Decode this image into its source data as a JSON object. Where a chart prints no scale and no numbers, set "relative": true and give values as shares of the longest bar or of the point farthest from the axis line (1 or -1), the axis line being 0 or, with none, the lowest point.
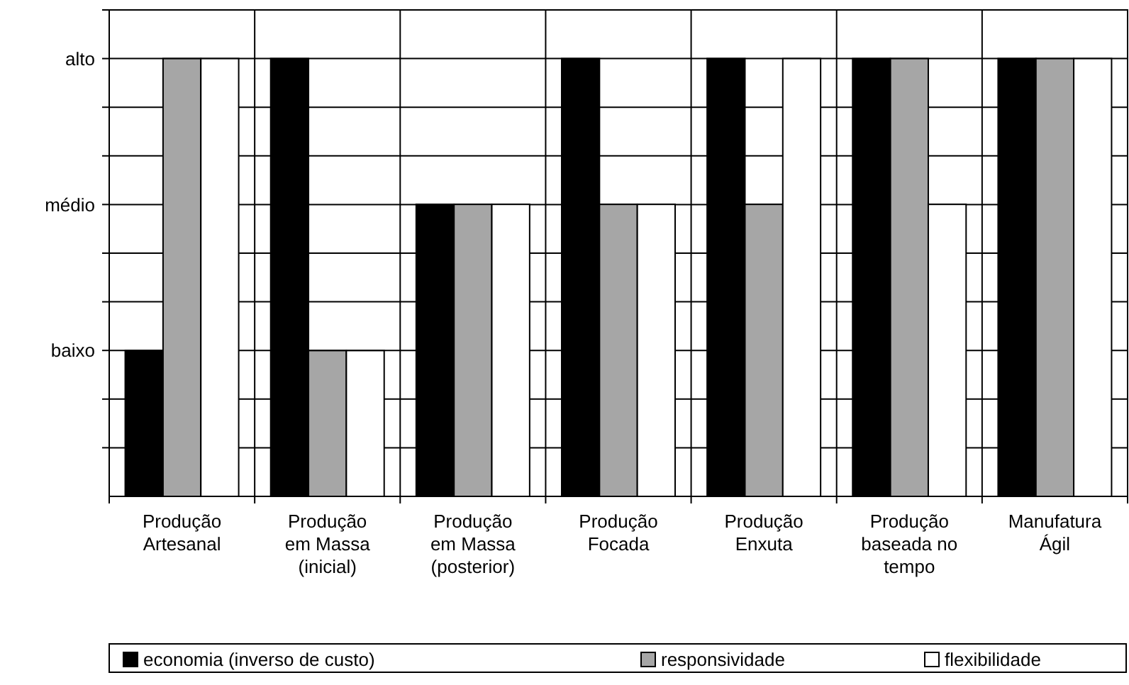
{
  "chart_data": {
    "type": "bar",
    "relative": true,
    "categories": [
      "Produção\nArtesanal",
      "Produção\nem Massa\n(inicial)",
      "Produção\nem Massa\n(posterior)",
      "Produção\nFocada",
      "Produção\nEnxuta",
      "Produção\nbaseada no\ntempo",
      "Manufatura\nÁgil"
    ],
    "series": [
      {
        "name": "economia (inverso de custo)",
        "color": "#000000",
        "values": [
          0.333,
          1,
          0.667,
          1,
          1,
          1,
          1
        ]
      },
      {
        "name": "responsividade",
        "color": "#a6a6a6",
        "values": [
          1,
          0.333,
          0.667,
          0.667,
          0.667,
          1,
          1
        ]
      },
      {
        "name": "flexibilidade",
        "color": "#ffffff",
        "values": [
          1,
          0.333,
          0.667,
          0.667,
          1,
          0.667,
          1
        ]
      }
    ],
    "annotations": [
      "baixo",
      "médio",
      "alto"
    ],
    "grid": true,
    "legend": "bottom"
  }
}
